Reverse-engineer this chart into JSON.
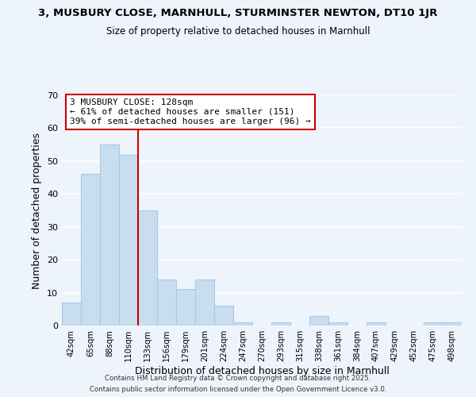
{
  "title1": "3, MUSBURY CLOSE, MARNHULL, STURMINSTER NEWTON, DT10 1JR",
  "title2": "Size of property relative to detached houses in Marnhull",
  "xlabel": "Distribution of detached houses by size in Marnhull",
  "ylabel": "Number of detached properties",
  "bar_color": "#c8ddf0",
  "bar_edge_color": "#a8c8e8",
  "background_color": "#eef4fc",
  "grid_color": "#ffffff",
  "tick_labels": [
    "42sqm",
    "65sqm",
    "88sqm",
    "110sqm",
    "133sqm",
    "156sqm",
    "179sqm",
    "201sqm",
    "224sqm",
    "247sqm",
    "270sqm",
    "293sqm",
    "315sqm",
    "338sqm",
    "361sqm",
    "384sqm",
    "407sqm",
    "429sqm",
    "452sqm",
    "475sqm",
    "498sqm"
  ],
  "bar_heights": [
    7,
    46,
    55,
    52,
    35,
    14,
    11,
    14,
    6,
    1,
    0,
    1,
    0,
    3,
    1,
    0,
    1,
    0,
    0,
    1,
    1
  ],
  "vline_color": "#cc0000",
  "annotation_title": "3 MUSBURY CLOSE: 128sqm",
  "annotation_line1": "← 61% of detached houses are smaller (151)",
  "annotation_line2": "39% of semi-detached houses are larger (96) →",
  "ylim": [
    0,
    70
  ],
  "yticks": [
    0,
    10,
    20,
    30,
    40,
    50,
    60,
    70
  ],
  "footer1": "Contains HM Land Registry data © Crown copyright and database right 2025.",
  "footer2": "Contains public sector information licensed under the Open Government Licence v3.0.",
  "vline_bar_index": 4
}
